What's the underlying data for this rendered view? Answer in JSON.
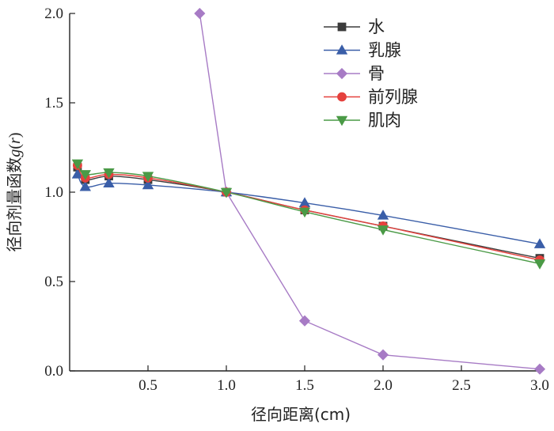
{
  "chart_data": {
    "type": "line",
    "xlabel": "径向距离(cm)",
    "ylabel_prefix": "径向剂量函数",
    "ylabel_var": "g",
    "ylabel_arg": "r",
    "xlim": [
      0,
      3.0
    ],
    "ylim": [
      0,
      2.0
    ],
    "x_ticks": [
      0.5,
      1.0,
      1.5,
      2.0,
      2.5,
      3.0
    ],
    "x_tick_labels": [
      "0.5",
      "1.0",
      "1.5",
      "2.0",
      "2.5",
      "3.0"
    ],
    "y_ticks": [
      0.0,
      0.5,
      1.0,
      1.5,
      2.0
    ],
    "y_tick_labels": [
      "0.0",
      "0.5",
      "1.0",
      "1.5",
      "2.0"
    ],
    "grid": false,
    "legend_position": "top-right",
    "series": [
      {
        "name": "水",
        "color": "#3b3b3b",
        "marker": "square",
        "x": [
          0.05,
          0.1,
          0.25,
          0.5,
          1.0,
          1.5,
          2.0,
          3.0
        ],
        "y": [
          1.14,
          1.07,
          1.09,
          1.07,
          1.0,
          0.9,
          0.81,
          0.63
        ]
      },
      {
        "name": "乳腺",
        "color": "#3a5ea8",
        "marker": "triangle-up",
        "x": [
          0.05,
          0.1,
          0.25,
          0.5,
          1.0,
          1.5,
          2.0,
          3.0
        ],
        "y": [
          1.1,
          1.03,
          1.05,
          1.04,
          1.0,
          0.94,
          0.87,
          0.71
        ]
      },
      {
        "name": "骨",
        "color": "#a77bc5",
        "marker": "diamond",
        "x": [
          0.83,
          1.0,
          1.5,
          2.0,
          3.0
        ],
        "y": [
          2.0,
          1.0,
          0.28,
          0.09,
          0.01
        ]
      },
      {
        "name": "前列腺",
        "color": "#e5413d",
        "marker": "circle",
        "x": [
          0.05,
          0.1,
          0.25,
          0.5,
          1.0,
          1.5,
          2.0,
          3.0
        ],
        "y": [
          1.15,
          1.08,
          1.1,
          1.08,
          1.0,
          0.9,
          0.81,
          0.62
        ]
      },
      {
        "name": "肌肉",
        "color": "#4a9a46",
        "marker": "triangle-down",
        "x": [
          0.05,
          0.1,
          0.25,
          0.5,
          1.0,
          1.5,
          2.0,
          3.0
        ],
        "y": [
          1.16,
          1.1,
          1.11,
          1.09,
          1.0,
          0.89,
          0.79,
          0.6
        ]
      }
    ]
  }
}
